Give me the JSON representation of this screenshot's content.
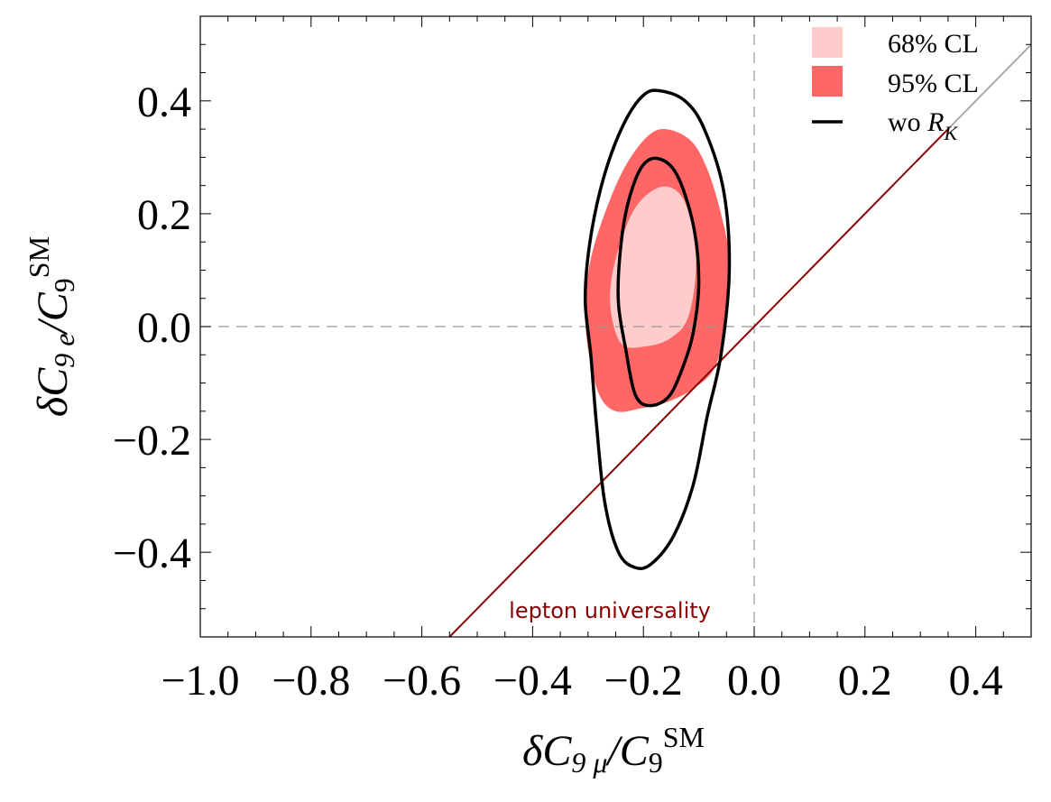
{
  "chart_data": {
    "type": "contour",
    "title": "",
    "xlabel": {
      "base": "δC",
      "sub": "9 μ",
      "slash": "/",
      "base2": "C",
      "sub2": "9",
      "sup2": "SM"
    },
    "ylabel": {
      "base": "δC",
      "sub": "9 e",
      "slash": "/",
      "base2": "C",
      "sub2": "9",
      "sup2": "SM"
    },
    "xlim": [
      -1.0,
      0.5
    ],
    "ylim": [
      -0.55,
      0.55
    ],
    "x_ticks": [
      -1.0,
      -0.8,
      -0.6,
      -0.4,
      -0.2,
      0.0,
      0.2,
      0.4
    ],
    "x_tick_labels": [
      "−1.0",
      "−0.8",
      "−0.6",
      "−0.4",
      "−0.2",
      "0.0",
      "0.2",
      "0.4"
    ],
    "y_ticks": [
      -0.4,
      -0.2,
      0.0,
      0.2,
      0.4
    ],
    "y_tick_labels": [
      "−0.4",
      "−0.2",
      "0.0",
      "0.2",
      "0.4"
    ],
    "reference_lines": {
      "x": 0.0,
      "y": 0.0,
      "style": "dashed"
    },
    "colors": {
      "cl68": "#ffcccc",
      "cl95": "#ff6666",
      "wo_rk": "#000000",
      "lepton_line": "#8b0000",
      "lepton_line_tail": "#aaaaaa",
      "reference": "#999999"
    },
    "legend": {
      "placement": "top-right",
      "entries": [
        {
          "label": "68% CL",
          "kind": "fill",
          "color": "#ffcccc"
        },
        {
          "label": "95% CL",
          "kind": "fill",
          "color": "#ff6666"
        },
        {
          "label_prefix": "wo ",
          "label_symbol": "R",
          "label_sub": "K",
          "kind": "line",
          "color": "#000000"
        }
      ]
    },
    "lepton_universality": {
      "label": "lepton universality",
      "x": [
        -0.55,
        0.35
      ],
      "y": [
        -0.55,
        0.35
      ],
      "tail": {
        "x": [
          0.35,
          0.5
        ],
        "y": [
          0.35,
          0.5
        ]
      }
    },
    "regions": [
      {
        "name": "95% CL",
        "color": "#ff6666",
        "points": [
          [
            -0.16,
            0.35
          ],
          [
            -0.115,
            0.33
          ],
          [
            -0.085,
            0.28
          ],
          [
            -0.06,
            0.2
          ],
          [
            -0.045,
            0.12
          ],
          [
            -0.05,
            0.02
          ],
          [
            -0.07,
            -0.07
          ],
          [
            -0.11,
            -0.11
          ],
          [
            -0.16,
            -0.135
          ],
          [
            -0.205,
            -0.145
          ],
          [
            -0.25,
            -0.15
          ],
          [
            -0.28,
            -0.12
          ],
          [
            -0.3,
            -0.04
          ],
          [
            -0.305,
            0.04
          ],
          [
            -0.295,
            0.12
          ],
          [
            -0.27,
            0.2
          ],
          [
            -0.235,
            0.28
          ],
          [
            -0.195,
            0.335
          ]
        ]
      },
      {
        "name": "68% CL",
        "color": "#ffcccc",
        "points": [
          [
            -0.165,
            0.248
          ],
          [
            -0.125,
            0.22
          ],
          [
            -0.105,
            0.12
          ],
          [
            -0.118,
            0.02
          ],
          [
            -0.15,
            -0.02
          ],
          [
            -0.195,
            -0.035
          ],
          [
            -0.24,
            -0.03
          ],
          [
            -0.26,
            0.04
          ],
          [
            -0.25,
            0.12
          ],
          [
            -0.215,
            0.21
          ]
        ]
      }
    ],
    "contours": [
      {
        "name": "wo R_K outer",
        "color": "#000000",
        "points": [
          [
            -0.17,
            0.418
          ],
          [
            -0.125,
            0.4
          ],
          [
            -0.09,
            0.35
          ],
          [
            -0.055,
            0.24
          ],
          [
            -0.045,
            0.1
          ],
          [
            -0.06,
            -0.05
          ],
          [
            -0.085,
            -0.16
          ],
          [
            -0.11,
            -0.28
          ],
          [
            -0.145,
            -0.37
          ],
          [
            -0.185,
            -0.42
          ],
          [
            -0.215,
            -0.427
          ],
          [
            -0.245,
            -0.4
          ],
          [
            -0.27,
            -0.31
          ],
          [
            -0.285,
            -0.17
          ],
          [
            -0.295,
            -0.05
          ],
          [
            -0.305,
            0.05
          ],
          [
            -0.295,
            0.16
          ],
          [
            -0.27,
            0.27
          ],
          [
            -0.235,
            0.36
          ],
          [
            -0.2,
            0.41
          ]
        ]
      },
      {
        "name": "wo R_K inner",
        "color": "#000000",
        "points": [
          [
            -0.175,
            0.298
          ],
          [
            -0.14,
            0.27
          ],
          [
            -0.11,
            0.18
          ],
          [
            -0.1,
            0.08
          ],
          [
            -0.11,
            -0.01
          ],
          [
            -0.13,
            -0.075
          ],
          [
            -0.155,
            -0.125
          ],
          [
            -0.19,
            -0.14
          ],
          [
            -0.215,
            -0.12
          ],
          [
            -0.232,
            -0.04
          ],
          [
            -0.245,
            0.04
          ],
          [
            -0.243,
            0.12
          ],
          [
            -0.23,
            0.21
          ],
          [
            -0.205,
            0.28
          ]
        ]
      }
    ]
  }
}
